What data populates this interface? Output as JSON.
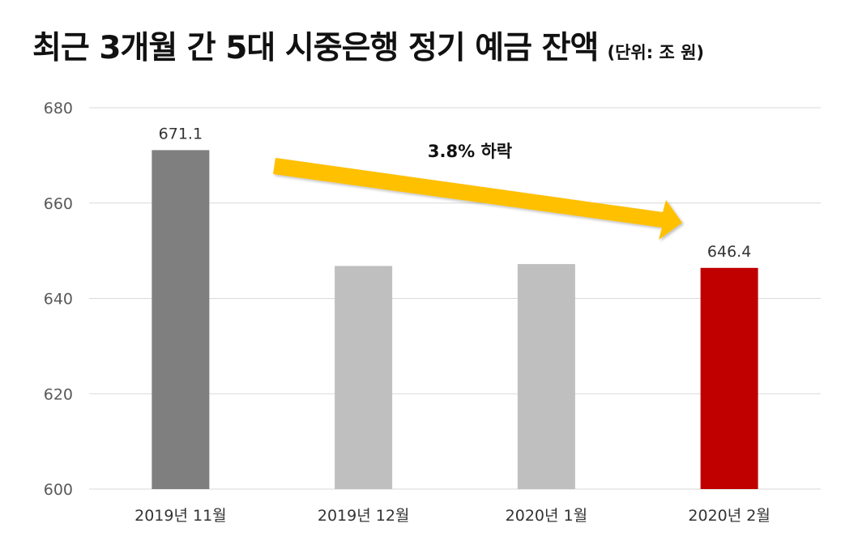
{
  "header": {
    "title": "최근 3개월 간 5대 시중은행 정기 예금 잔액",
    "unit": "(단위: 조 원)"
  },
  "colors": {
    "bar_default": "#bfbfbf",
    "bar_first": "#7f7f7f",
    "bar_last": "#c00000",
    "arrow": "#ffc000",
    "grid": "#d9d9d9"
  },
  "annotation": {
    "text": "3.8% 하락"
  },
  "chart_data": {
    "type": "bar",
    "title": "최근 3개월 간 5대 시중은행 정기 예금 잔액",
    "unit": "(단위: 조 원)",
    "categories": [
      "2019년 11월",
      "2019년 12월",
      "2020년 1월",
      "2020년 2월"
    ],
    "values": [
      671.1,
      646.8,
      647.2,
      646.4
    ],
    "data_labels": [
      "671.1",
      "",
      "",
      "646.4"
    ],
    "ylim": [
      600,
      680
    ],
    "yticks": [
      600,
      620,
      640,
      660,
      680
    ],
    "grid": true,
    "legend": "none"
  }
}
